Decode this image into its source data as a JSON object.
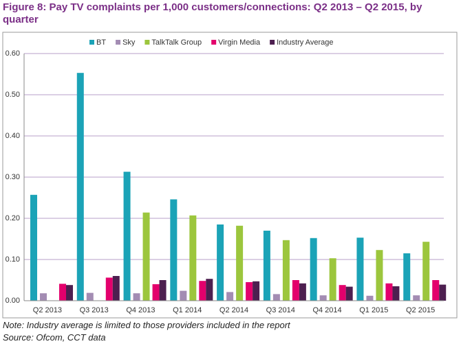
{
  "chart_data": {
    "type": "bar",
    "title": "Figure 8: Pay TV complaints per 1,000 customers/connections: Q2 2013 – Q2 2015, by quarter",
    "categories": [
      "Q2 2013",
      "Q3 2013",
      "Q4 2013",
      "Q1 2014",
      "Q2 2014",
      "Q3 2014",
      "Q4 2014",
      "Q1 2015",
      "Q2 2015"
    ],
    "series": [
      {
        "name": "BT",
        "color": "#1ba3b7",
        "values": [
          0.257,
          0.553,
          0.313,
          0.246,
          0.185,
          0.17,
          0.152,
          0.153,
          0.115
        ]
      },
      {
        "name": "Sky",
        "color": "#a38cb3",
        "values": [
          0.018,
          0.019,
          0.018,
          0.024,
          0.021,
          0.016,
          0.013,
          0.012,
          0.013
        ]
      },
      {
        "name": "TalkTalk Group",
        "color": "#9cc63d",
        "values": [
          null,
          null,
          0.214,
          0.207,
          0.182,
          0.147,
          0.103,
          0.123,
          0.143
        ]
      },
      {
        "name": "Virgin Media",
        "color": "#e3006c",
        "values": [
          0.041,
          0.056,
          0.04,
          0.048,
          0.045,
          0.05,
          0.038,
          0.042,
          0.05
        ]
      },
      {
        "name": "Industry Average",
        "color": "#4d1f50",
        "values": [
          0.038,
          0.06,
          0.05,
          0.053,
          0.047,
          0.042,
          0.034,
          0.035,
          0.039
        ]
      }
    ],
    "ylim": [
      0,
      0.6
    ],
    "yticks": [
      {
        "value": 0,
        "label": "0.00"
      },
      {
        "value": 0.1,
        "label": "0.10"
      },
      {
        "value": 0.2,
        "label": "0.20"
      },
      {
        "value": 0.3,
        "label": "0.30"
      },
      {
        "value": 0.4,
        "label": "0.40"
      },
      {
        "value": 0.5,
        "label": "0.50"
      },
      {
        "value": 0.6,
        "label": "0.60"
      }
    ],
    "grid": true,
    "legend": "top",
    "note": "Note: Industry average is limited to those providers included in the report",
    "source": "Source: Ofcom, CCT data"
  }
}
